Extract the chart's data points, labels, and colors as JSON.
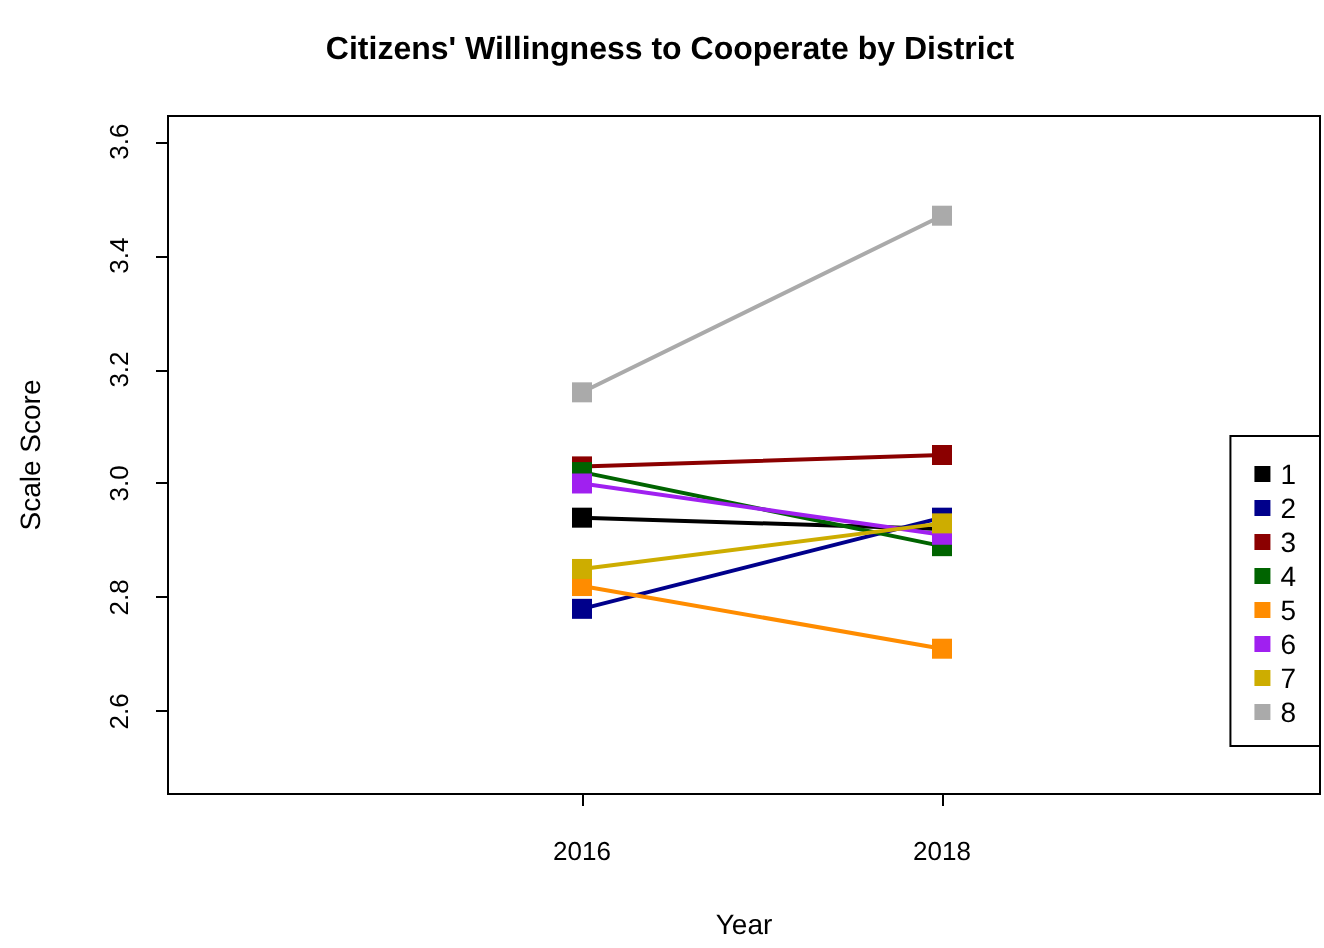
{
  "chart_data": {
    "type": "line",
    "title": "Citizens' Willingness to Cooperate by District",
    "xlabel": "Year",
    "ylabel": "Scale Score",
    "x": [
      2016,
      2018
    ],
    "xlim": [
      2013.7,
      2020.1
    ],
    "xticks": [
      2016,
      2018
    ],
    "ylim": [
      2.455,
      3.645
    ],
    "yticks": [
      2.6,
      2.8,
      {
        "value": 3,
        "label": "3.0"
      },
      3.2,
      3.4,
      3.6
    ],
    "grid": false,
    "legend": "right",
    "marker": "square",
    "line_style": "solid",
    "series": [
      {
        "name": "1",
        "color": "#000000",
        "values": [
          2.94,
          2.92
        ]
      },
      {
        "name": "2",
        "color": "#00008b",
        "values": [
          2.78,
          2.94
        ]
      },
      {
        "name": "3",
        "color": "#8b0000",
        "values": [
          3.03,
          3.05
        ]
      },
      {
        "name": "4",
        "color": "#006400",
        "values": [
          3.02,
          2.89
        ]
      },
      {
        "name": "5",
        "color": "#ff8c00",
        "values": [
          2.82,
          2.71
        ]
      },
      {
        "name": "6",
        "color": "#a020f0",
        "values": [
          3.0,
          2.91
        ]
      },
      {
        "name": "7",
        "color": "#cdad00",
        "values": [
          2.85,
          2.93
        ]
      },
      {
        "name": "8",
        "color": "#aaaaaa",
        "values": [
          3.16,
          3.47
        ]
      }
    ]
  }
}
